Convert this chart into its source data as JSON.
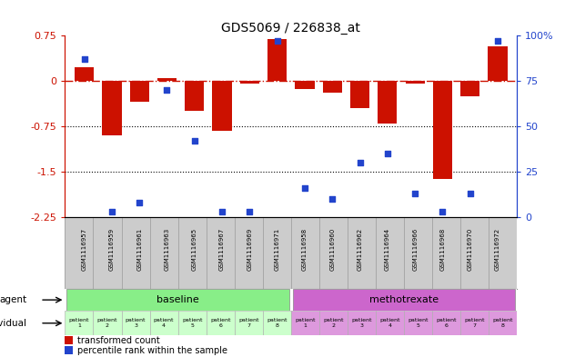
{
  "title": "GDS5069 / 226838_at",
  "samples": [
    "GSM1116957",
    "GSM1116959",
    "GSM1116961",
    "GSM1116963",
    "GSM1116965",
    "GSM1116967",
    "GSM1116969",
    "GSM1116971",
    "GSM1116958",
    "GSM1116960",
    "GSM1116962",
    "GSM1116964",
    "GSM1116966",
    "GSM1116968",
    "GSM1116970",
    "GSM1116972"
  ],
  "bar_values": [
    0.22,
    -0.9,
    -0.35,
    0.05,
    -0.5,
    -0.82,
    -0.05,
    0.7,
    -0.13,
    -0.2,
    -0.45,
    -0.7,
    -0.05,
    -1.62,
    -0.25,
    0.58
  ],
  "percentile_values": [
    87,
    3,
    8,
    70,
    42,
    3,
    3,
    97,
    16,
    10,
    30,
    35,
    13,
    3,
    13,
    97
  ],
  "ylim": [
    -2.25,
    0.75
  ],
  "yticks_left": [
    0.75,
    0,
    -0.75,
    -1.5,
    -2.25
  ],
  "yticks_right": [
    100,
    75,
    50,
    25,
    0
  ],
  "bar_color": "#cc1100",
  "dot_color": "#2244cc",
  "zero_line_color": "#cc1100",
  "grid_line_color": "#000000",
  "background_color": "#ffffff",
  "sample_bg_color": "#cccccc",
  "agent_baseline_color": "#88ee88",
  "agent_methotrexate_color": "#cc66cc",
  "individual_baseline_color": "#ccffcc",
  "individual_methotrexate_color": "#dd99dd",
  "agent_label_baseline": "baseline",
  "agent_label_methotrexate": "methotrexate",
  "agent_row_label": "agent",
  "individual_row_label": "individual",
  "legend_bar": "transformed count",
  "legend_dot": "percentile rank within the sample",
  "n_baseline": 8,
  "n_methotrexate": 8,
  "patient_labels": [
    "patient\n1",
    "patient\n2",
    "patient\n3",
    "patient\n4",
    "patient\n5",
    "patient\n6",
    "patient\n7",
    "patient\n8",
    "patient\n1",
    "patient\n2",
    "patient\n3",
    "patient\n4",
    "patient\n5",
    "patient\n6",
    "patient\n7",
    "patient\n8"
  ]
}
